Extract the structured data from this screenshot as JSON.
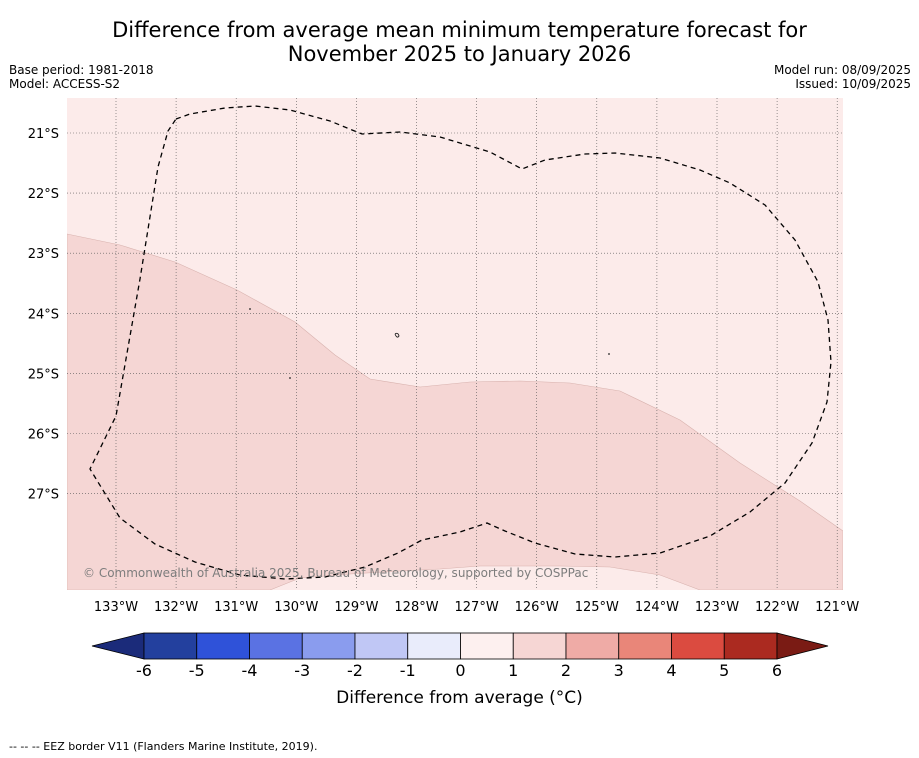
{
  "title_line1": "Difference from average mean minimum temperature forecast for",
  "title_line2": "November 2025 to January 2026",
  "base_period": "Base period: 1981-2018",
  "model": "Model: ACCESS-S2",
  "model_run": "Model run: 08/09/2025",
  "issued": "Issued: 10/09/2025",
  "copyright": "© Commonwealth of Australia 2025, Bureau of Meteorology, supported by COSPPac",
  "lon_labels": [
    "133°W",
    "132°W",
    "131°W",
    "130°W",
    "129°W",
    "128°W",
    "127°W",
    "126°W",
    "125°W",
    "124°W",
    "123°W",
    "122°W",
    "121°W"
  ],
  "lat_labels": [
    "21°S",
    "22°S",
    "23°S",
    "24°S",
    "25°S",
    "26°S",
    "27°S"
  ],
  "colorbar": {
    "ticks": [
      "-6",
      "-5",
      "-4",
      "-3",
      "-2",
      "-1",
      "0",
      "1",
      "2",
      "3",
      "4",
      "5",
      "6"
    ],
    "colors": [
      "#23409e",
      "#2f52d9",
      "#5a72e3",
      "#8a9cee",
      "#c0c7f5",
      "#e9ecfb",
      "#fdf0ef",
      "#f6d6d4",
      "#efaba6",
      "#e98679",
      "#db4b40",
      "#ab2a20"
    ],
    "under_color": "#1b2b7a",
    "over_color": "#7a1b14",
    "label": "Difference from average (°C)"
  },
  "legend": {
    "fill_0_1": "#fcebea",
    "fill_1_2": "#f5d6d4"
  },
  "footnote": "--  --  -- EEZ border V11 (Flanders Marine Institute, 2019)."
}
